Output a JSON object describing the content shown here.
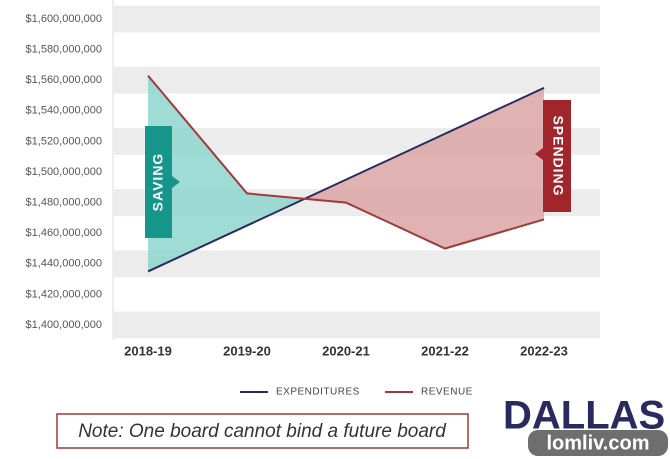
{
  "chart_data": {
    "type": "line",
    "categories": [
      "2018-19",
      "2019-20",
      "2020-21",
      "2021-22",
      "2022-23"
    ],
    "series": [
      {
        "name": "EXPENDITURES",
        "color": "#2b2a5e",
        "values": [
          1435000000,
          1465000000,
          1495000000,
          1525000000,
          1555000000
        ]
      },
      {
        "name": "REVENUE",
        "color": "#9e3a3a",
        "values": [
          1563000000,
          1486000000,
          1480000000,
          1450000000,
          1469000000
        ]
      }
    ],
    "ylim": [
      1400000000,
      1600000000
    ],
    "yticks": [
      {
        "value": 1400000000,
        "label": "$1,400,000,000"
      },
      {
        "value": 1420000000,
        "label": "$1,420,000,000"
      },
      {
        "value": 1440000000,
        "label": "$1,440,000,000"
      },
      {
        "value": 1460000000,
        "label": "$1,460,000,000"
      },
      {
        "value": 1480000000,
        "label": "$1,480,000,000"
      },
      {
        "value": 1500000000,
        "label": "$1,500,000,000"
      },
      {
        "value": 1520000000,
        "label": "$1,520,000,000"
      },
      {
        "value": 1540000000,
        "label": "$1,540,000,000"
      },
      {
        "value": 1560000000,
        "label": "$1,560,000,000"
      },
      {
        "value": 1580000000,
        "label": "$1,580,000,000"
      },
      {
        "value": 1600000000,
        "label": "$1,600,000,000"
      }
    ],
    "annotations": [
      "SAVING",
      "SPENDING"
    ],
    "note": "Note: One board cannot bind a future board",
    "logo": "DALLAS",
    "watermark": "lomliv.com"
  }
}
